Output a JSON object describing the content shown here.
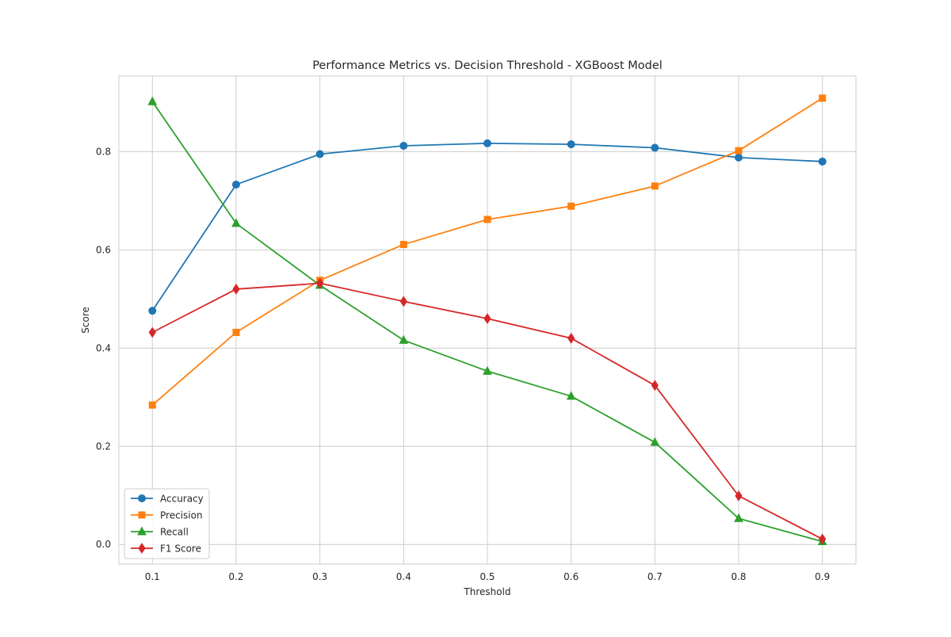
{
  "chart_data": {
    "type": "line",
    "title": "Performance Metrics vs. Decision Threshold - XGBoost Model",
    "xlabel": "Threshold",
    "ylabel": "Score",
    "x": [
      0.1,
      0.2,
      0.3,
      0.4,
      0.5,
      0.6,
      0.7,
      0.8,
      0.9
    ],
    "xlim": [
      0.06,
      0.94
    ],
    "ylim": [
      -0.04,
      0.954
    ],
    "x_ticks": [
      "0.1",
      "0.2",
      "0.3",
      "0.4",
      "0.5",
      "0.6",
      "0.7",
      "0.8",
      "0.9"
    ],
    "y_ticks": [
      "0.0",
      "0.2",
      "0.4",
      "0.6",
      "0.8"
    ],
    "grid": true,
    "legend_position": "lower-left",
    "series": [
      {
        "name": "Accuracy",
        "color": "#1f77b4",
        "marker": "circle",
        "values": [
          0.476,
          0.733,
          0.795,
          0.812,
          0.817,
          0.815,
          0.808,
          0.788,
          0.78
        ]
      },
      {
        "name": "Precision",
        "color": "#ff7f0e",
        "marker": "square",
        "values": [
          0.284,
          0.432,
          0.538,
          0.611,
          0.662,
          0.689,
          0.73,
          0.802,
          0.909
        ]
      },
      {
        "name": "Recall",
        "color": "#2ca02c",
        "marker": "triangle",
        "values": [
          0.902,
          0.654,
          0.528,
          0.416,
          0.353,
          0.302,
          0.208,
          0.053,
          0.006
        ]
      },
      {
        "name": "F1 Score",
        "color": "#d62728",
        "marker": "diamond",
        "values": [
          0.432,
          0.52,
          0.532,
          0.495,
          0.46,
          0.42,
          0.324,
          0.099,
          0.011
        ]
      }
    ]
  }
}
